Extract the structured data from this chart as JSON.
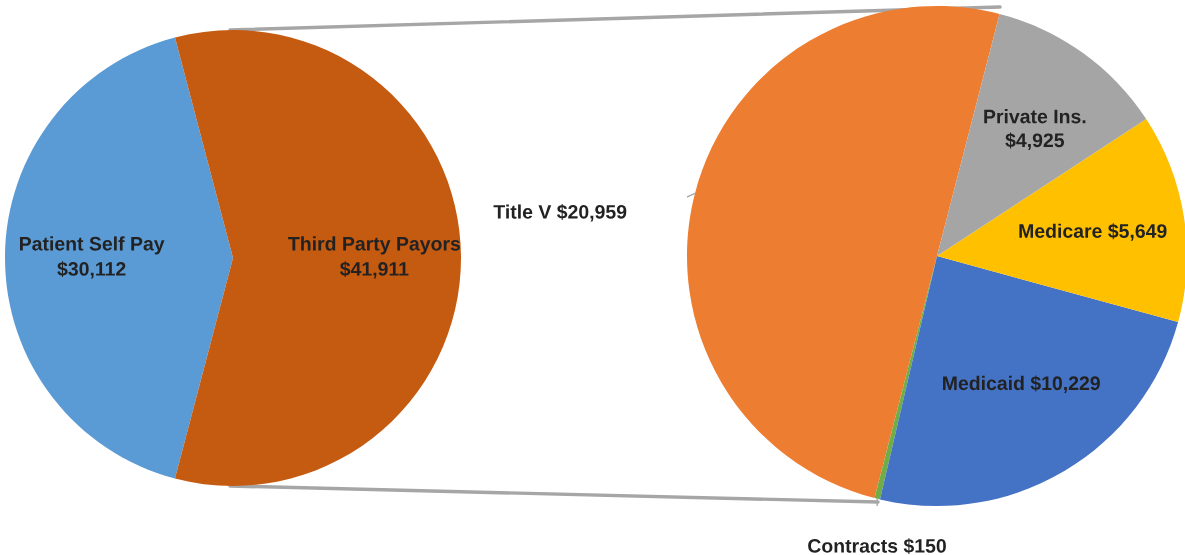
{
  "chart_data": [
    {
      "type": "pie",
      "categories": [
        "Patient Self Pay",
        "Third Party Payors"
      ],
      "values": [
        30112,
        41911
      ],
      "colors": [
        "#5b9bd5",
        "#c55a11"
      ],
      "value_labels": [
        "$30,112",
        "$41,911"
      ]
    },
    {
      "type": "pie",
      "categories": [
        "Title V",
        "Contracts",
        "Medicaid",
        "Medicare",
        "Private Ins."
      ],
      "values": [
        20959,
        150,
        10229,
        5649,
        4925
      ],
      "colors": [
        "#ed7d31",
        "#70ad47",
        "#4472c4",
        "#ffc000",
        "#a5a5a5"
      ],
      "value_labels": [
        "$20,959",
        "$150",
        "$10,229",
        "$5,649",
        "$4,925"
      ]
    }
  ]
}
